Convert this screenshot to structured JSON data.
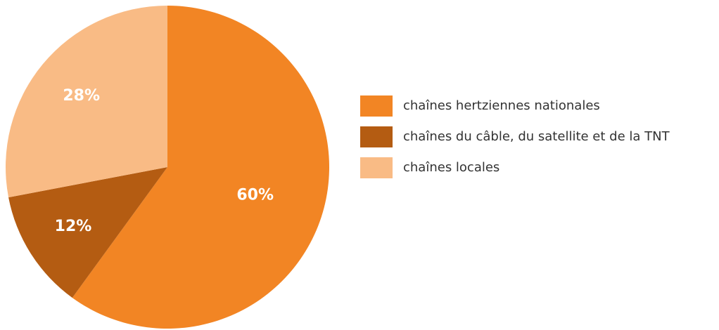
{
  "chart_data": {
    "type": "pie",
    "categories": [
      "chaînes hertziennes nationales",
      "chaînes du câble, du satellite et de la TNT",
      "chaînes locales"
    ],
    "values": [
      60,
      12,
      28
    ],
    "value_labels": [
      "60%",
      "12%",
      "28%"
    ],
    "colors": [
      "#f28524",
      "#b45c12",
      "#f9bb85"
    ],
    "legend": "right"
  }
}
